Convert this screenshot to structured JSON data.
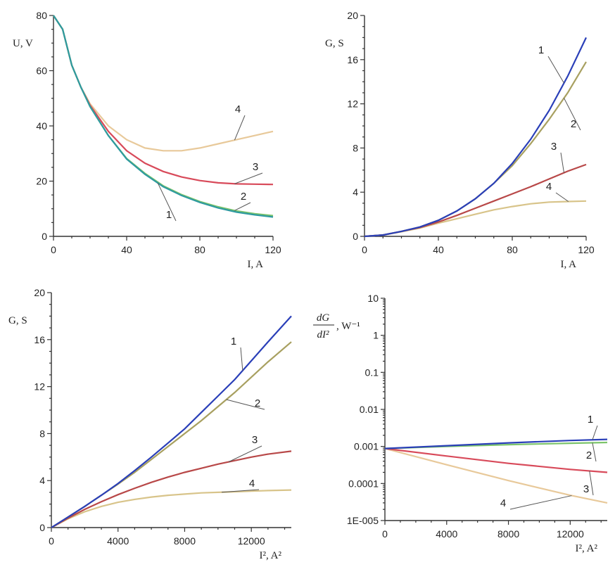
{
  "chart_data": [
    {
      "type": "line",
      "ylabel": "U, V",
      "xlabel": "I, A",
      "xlim": [
        0,
        120
      ],
      "ylim": [
        0,
        80
      ],
      "xticks": [
        "0",
        "40",
        "80",
        "120"
      ],
      "yticks": [
        "0",
        "20",
        "40",
        "60",
        "80"
      ],
      "series": [
        {
          "name": "1",
          "color": "#2e9aa0",
          "x": [
            0,
            5,
            10,
            15,
            20,
            30,
            40,
            50,
            60,
            70,
            80,
            90,
            100,
            110,
            120
          ],
          "y": [
            80,
            75,
            62,
            54,
            47,
            36.5,
            28,
            22.5,
            18,
            14.8,
            12.3,
            10.3,
            8.8,
            7.8,
            7
          ]
        },
        {
          "name": "2",
          "color": "#7cc46b",
          "x": [
            0,
            5,
            10,
            15,
            20,
            30,
            40,
            50,
            60,
            70,
            80,
            90,
            100,
            110,
            120
          ],
          "y": [
            80,
            75,
            62,
            54,
            47,
            36.5,
            28.2,
            22.8,
            18.3,
            15.1,
            12.6,
            10.7,
            9.2,
            8.2,
            7.5
          ]
        },
        {
          "name": "3",
          "color": "#d84a5a",
          "x": [
            0,
            5,
            10,
            15,
            20,
            30,
            40,
            50,
            60,
            70,
            80,
            90,
            100,
            110,
            120
          ],
          "y": [
            80,
            75,
            62,
            54,
            47.5,
            38,
            31,
            26.5,
            23.5,
            21.5,
            20.2,
            19.4,
            19,
            18.9,
            18.8
          ]
        },
        {
          "name": "4",
          "color": "#e8c99a",
          "x": [
            0,
            5,
            10,
            15,
            20,
            30,
            40,
            50,
            60,
            70,
            80,
            90,
            100,
            110,
            120
          ],
          "y": [
            80,
            75,
            62,
            54,
            48,
            40,
            35,
            32,
            31,
            31,
            32,
            33.5,
            35,
            36.5,
            38
          ]
        }
      ]
    },
    {
      "type": "line",
      "ylabel": "G, S",
      "xlabel": "I, A",
      "xlim": [
        0,
        120
      ],
      "ylim": [
        0,
        20
      ],
      "xticks": [
        "0",
        "40",
        "80",
        "120"
      ],
      "yticks": [
        "0",
        "4",
        "8",
        "12",
        "16",
        "20"
      ],
      "series": [
        {
          "name": "1",
          "color": "#2a3fb8",
          "x": [
            0,
            10,
            20,
            30,
            40,
            50,
            60,
            70,
            80,
            90,
            100,
            110,
            120
          ],
          "y": [
            0,
            0.12,
            0.45,
            0.85,
            1.45,
            2.3,
            3.4,
            4.8,
            6.6,
            8.8,
            11.4,
            14.5,
            18
          ]
        },
        {
          "name": "2",
          "color": "#a8a060",
          "x": [
            0,
            10,
            20,
            30,
            40,
            50,
            60,
            70,
            80,
            90,
            100,
            110,
            120
          ],
          "y": [
            0,
            0.12,
            0.45,
            0.85,
            1.45,
            2.3,
            3.4,
            4.8,
            6.4,
            8.4,
            10.6,
            13,
            15.8
          ]
        },
        {
          "name": "3",
          "color": "#b84848",
          "x": [
            0,
            10,
            20,
            30,
            40,
            50,
            60,
            70,
            80,
            90,
            100,
            110,
            120
          ],
          "y": [
            0,
            0.12,
            0.45,
            0.8,
            1.3,
            1.9,
            2.55,
            3.2,
            3.85,
            4.5,
            5.2,
            5.9,
            6.5
          ]
        },
        {
          "name": "4",
          "color": "#d8c48a",
          "x": [
            0,
            10,
            20,
            30,
            40,
            50,
            60,
            70,
            80,
            90,
            100,
            110,
            120
          ],
          "y": [
            0,
            0.12,
            0.42,
            0.75,
            1.2,
            1.6,
            2.0,
            2.4,
            2.7,
            2.95,
            3.1,
            3.15,
            3.2
          ]
        }
      ]
    },
    {
      "type": "line",
      "ylabel": "G, S",
      "xlabel": "I², A²",
      "xlim": [
        0,
        14400
      ],
      "ylim": [
        0,
        20
      ],
      "xticks": [
        "0",
        "4000",
        "8000",
        "12000"
      ],
      "yticks": [
        "0",
        "4",
        "8",
        "12",
        "16",
        "20"
      ],
      "series": [
        {
          "name": "1",
          "color": "#2a3fb8",
          "x": [
            0,
            1000,
            2000,
            3000,
            4000,
            5000,
            6000,
            7000,
            8000,
            9000,
            10000,
            11000,
            12000,
            13000,
            14400
          ],
          "y": [
            0,
            0.9,
            1.8,
            2.75,
            3.75,
            4.85,
            6,
            7.2,
            8.4,
            9.8,
            11.2,
            12.6,
            14.2,
            15.8,
            18
          ]
        },
        {
          "name": "2",
          "color": "#a8a060",
          "x": [
            0,
            1000,
            2000,
            3000,
            4000,
            5000,
            6000,
            7000,
            8000,
            9000,
            10000,
            11000,
            12000,
            13000,
            14400
          ],
          "y": [
            0,
            0.9,
            1.8,
            2.75,
            3.7,
            4.7,
            5.8,
            6.9,
            8,
            9.1,
            10.3,
            11.5,
            12.8,
            14.1,
            15.8
          ]
        },
        {
          "name": "3",
          "color": "#b84848",
          "x": [
            0,
            1000,
            2000,
            3000,
            4000,
            5000,
            6000,
            7000,
            8000,
            9000,
            10000,
            11000,
            12000,
            13000,
            14400
          ],
          "y": [
            0,
            0.8,
            1.55,
            2.2,
            2.8,
            3.35,
            3.85,
            4.3,
            4.7,
            5.05,
            5.4,
            5.7,
            6.0,
            6.25,
            6.5
          ]
        },
        {
          "name": "4",
          "color": "#d8c48a",
          "x": [
            0,
            1000,
            2000,
            3000,
            4000,
            5000,
            6000,
            7000,
            8000,
            9000,
            10000,
            11000,
            12000,
            13000,
            14400
          ],
          "y": [
            0,
            0.75,
            1.35,
            1.8,
            2.15,
            2.4,
            2.6,
            2.75,
            2.85,
            2.95,
            3.0,
            3.05,
            3.1,
            3.15,
            3.2
          ]
        }
      ]
    },
    {
      "type": "line",
      "ylabel": "dG/dI², W⁻¹",
      "xlabel": "I², A²",
      "yscale": "log",
      "xlim": [
        0,
        14400
      ],
      "ylim": [
        1e-05,
        10
      ],
      "xticks": [
        "0",
        "4000",
        "8000",
        "12000"
      ],
      "yticks": [
        "1E-005",
        "0.0001",
        "0.001",
        "0.01",
        "0.1",
        "1",
        "10"
      ],
      "series": [
        {
          "name": "1",
          "color": "#2a3fb8",
          "x": [
            0,
            4000,
            8000,
            12000,
            14400
          ],
          "y": [
            0.00088,
            0.00105,
            0.00125,
            0.00145,
            0.00155
          ]
        },
        {
          "name": "2",
          "color": "#7cc46b",
          "x": [
            0,
            4000,
            8000,
            12000,
            14400
          ],
          "y": [
            0.00088,
            0.001,
            0.00112,
            0.00122,
            0.00128
          ]
        },
        {
          "name": "3",
          "color": "#d84a5a",
          "x": [
            0,
            4000,
            8000,
            12000,
            14400
          ],
          "y": [
            0.00088,
            0.00055,
            0.00035,
            0.00024,
            0.0002
          ]
        },
        {
          "name": "4",
          "color": "#e8c99a",
          "x": [
            0,
            4000,
            8000,
            12000,
            14400
          ],
          "y": [
            0.00088,
            0.00032,
            0.00012,
            4.8e-05,
            3e-05
          ]
        }
      ]
    }
  ]
}
